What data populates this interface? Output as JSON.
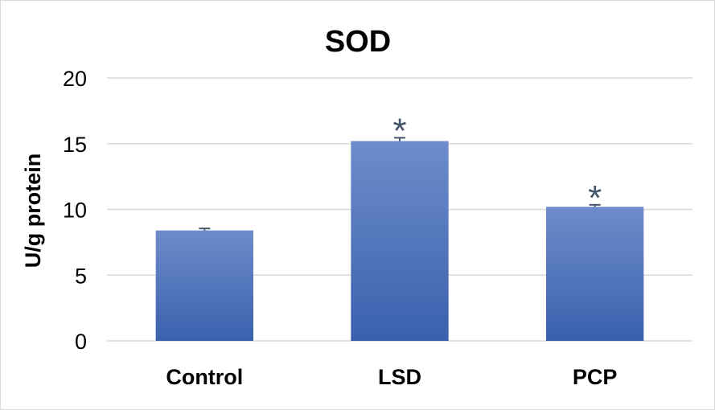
{
  "chart_data": {
    "type": "bar",
    "title": "SOD",
    "xlabel": "",
    "ylabel": "U/g protein",
    "categories": [
      "Control",
      "LSD",
      "PCP"
    ],
    "values": [
      8.4,
      15.2,
      10.2
    ],
    "errors": [
      0.15,
      0.25,
      0.15
    ],
    "annotations": [
      "",
      "*",
      "*"
    ],
    "ylim": [
      0,
      20
    ],
    "yticks": [
      "0",
      "5",
      "10",
      "15",
      "20"
    ],
    "ytick_values": [
      0,
      5,
      10,
      15,
      20
    ],
    "grid": true,
    "legend": "none",
    "colors": {
      "bar_top": "#6e8ccb",
      "bar_bottom": "#3a60ad",
      "grid": "#d9d9d9",
      "error_bar": "#44546a",
      "annotation": "#44546a"
    }
  }
}
